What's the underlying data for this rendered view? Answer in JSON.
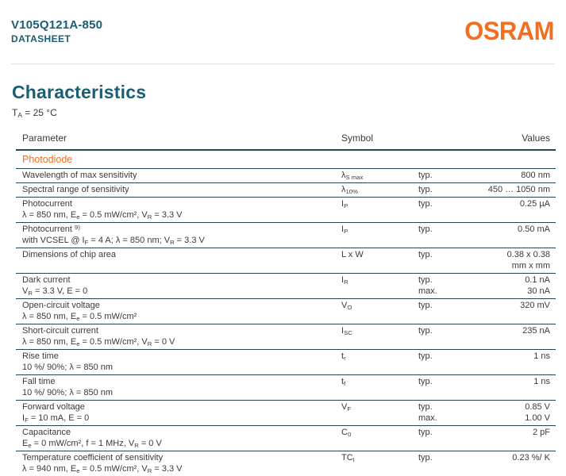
{
  "colors": {
    "teal": "#1A5E74",
    "orange": "#F26F21",
    "text": "#3A3A39",
    "rule_line": "#1E4759",
    "header_divider": "#DCE3E8"
  },
  "header": {
    "product_name": "V105Q121A-850",
    "doc_type": "DATASHEET",
    "logo_text": "OSRAM"
  },
  "section": {
    "title": "Characteristics",
    "condition": "T_{A} = 25 °C"
  },
  "table": {
    "columns": [
      "Parameter",
      "Symbol",
      "Values"
    ],
    "group_label": "Photodiode",
    "rows": [
      {
        "parameter": "Wavelength of max sensitivity",
        "condition": "",
        "symbol": "λ_{S max}",
        "lines": [
          {
            "qual": "typ.",
            "value": "800 nm"
          }
        ]
      },
      {
        "parameter": "Spectral range of sensitivity",
        "condition": "",
        "symbol": "λ_{10%}",
        "lines": [
          {
            "qual": "typ.",
            "value": "450 … 1050 nm"
          }
        ]
      },
      {
        "parameter": "Photocurrent",
        "condition": "λ = 850 nm, E_{e} = 0.5 mW/cm², V_{R} = 3.3 V",
        "symbol": "I_{P}",
        "lines": [
          {
            "qual": "typ.",
            "value": "0.25 µA"
          }
        ]
      },
      {
        "parameter": "Photocurrent ^{9)}",
        "condition": "with VCSEL @ I_{F} = 4 A; λ = 850 nm; V_{R} = 3.3 V",
        "symbol": "I_{P}",
        "lines": [
          {
            "qual": "typ.",
            "value": "0.50 mA"
          }
        ]
      },
      {
        "parameter": "Dimensions of chip area",
        "condition": "",
        "symbol": "L x W",
        "lines": [
          {
            "qual": "typ.",
            "value": "0.38 x 0.38"
          },
          {
            "qual": "",
            "value": "mm x mm"
          }
        ]
      },
      {
        "parameter": "Dark current",
        "condition": "V_{R} = 3.3 V, E = 0",
        "symbol": "I_{R}",
        "lines": [
          {
            "qual": "typ.",
            "value": "0.1 nA"
          },
          {
            "qual": "max.",
            "value": "30 nA"
          }
        ]
      },
      {
        "parameter": "Open-circuit voltage",
        "condition": "λ = 850 nm, E_{e} = 0.5 mW/cm²",
        "symbol": "V_{O}",
        "lines": [
          {
            "qual": "typ.",
            "value": "320 mV"
          }
        ]
      },
      {
        "parameter": "Short-circuit current",
        "condition": "λ = 850 nm, E_{e} = 0.5 mW/cm², V_{R} = 0 V",
        "symbol": "I_{SC}",
        "lines": [
          {
            "qual": "typ.",
            "value": "235 nA"
          }
        ]
      },
      {
        "parameter": "Rise time",
        "condition": "10 %/ 90%; λ = 850 nm",
        "symbol": "t_{r}",
        "lines": [
          {
            "qual": "typ.",
            "value": "1 ns"
          }
        ]
      },
      {
        "parameter": "Fall time",
        "condition": "10 %/ 90%; λ = 850 nm",
        "symbol": "t_{f}",
        "lines": [
          {
            "qual": "typ.",
            "value": "1 ns"
          }
        ]
      },
      {
        "parameter": "Forward voltage",
        "condition": "I_{F} = 10 mA, E = 0",
        "symbol": "V_{F}",
        "lines": [
          {
            "qual": "typ.",
            "value": "0.85 V"
          },
          {
            "qual": "max.",
            "value": "1.00 V"
          }
        ]
      },
      {
        "parameter": "Capacitance",
        "condition": "E_{e} = 0 mW/cm², f = 1 MHz, V_{R} = 0 V",
        "symbol": "C_{0}",
        "lines": [
          {
            "qual": "typ.",
            "value": "2 pF"
          }
        ]
      },
      {
        "parameter": "Temperature coefficient of sensitivity",
        "condition": "λ = 940 nm, E_{e} = 0.5 mW/cm², V_{R} = 3.3 V",
        "symbol": "TC_{I}",
        "lines": [
          {
            "qual": "typ.",
            "value": "0.23 %/ K"
          }
        ]
      }
    ]
  }
}
